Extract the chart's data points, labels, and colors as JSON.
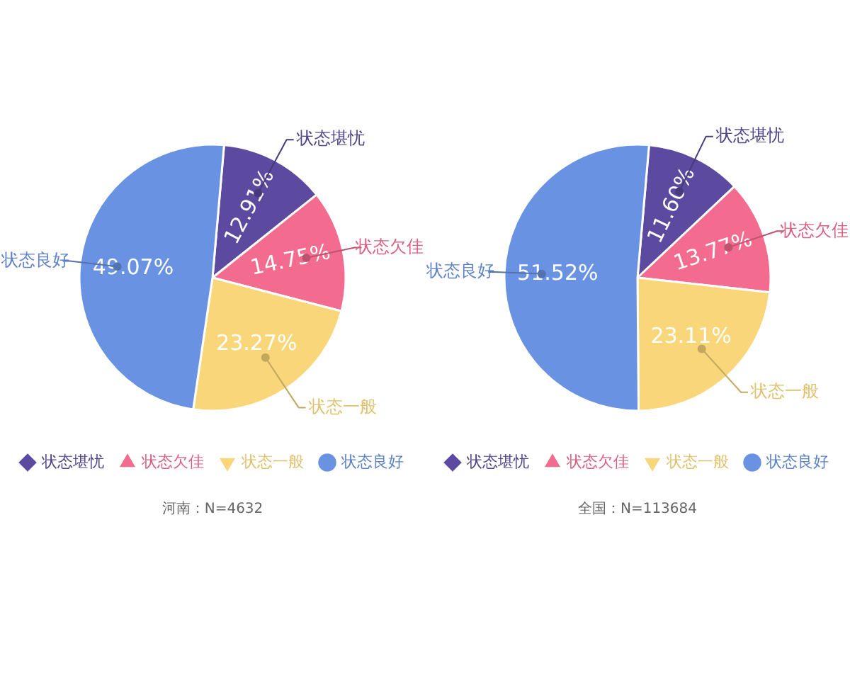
{
  "chart_data": [
    {
      "type": "pie",
      "categories": [
        "状态堪忧",
        "状态欠佳",
        "状态一般",
        "状态良好"
      ],
      "values": [
        12.91,
        14.75,
        23.27,
        49.07
      ],
      "colors": [
        "#5b4a9f",
        "#f36b8f",
        "#f9d67a",
        "#6a92e2"
      ],
      "value_labels": [
        "12.91%",
        "14.75%",
        "23.27%",
        "49.07%"
      ],
      "legend": "bottom",
      "annotations": [
        "河南：N=4632"
      ]
    },
    {
      "type": "pie",
      "categories": [
        "状态堪忧",
        "状态欠佳",
        "状态一般",
        "状态良好"
      ],
      "values": [
        11.6,
        13.77,
        23.11,
        51.52
      ],
      "colors": [
        "#5b4a9f",
        "#f36b8f",
        "#f9d67a",
        "#6a92e2"
      ],
      "value_labels": [
        "11.60%",
        "13.77%",
        "23.11%",
        "51.52%"
      ],
      "legend": "bottom",
      "annotations": [
        "全国：N=113684"
      ]
    }
  ]
}
